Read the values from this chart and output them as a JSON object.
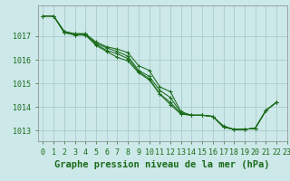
{
  "title": "Graphe pression niveau de la mer (hPa)",
  "background_color": "#cce8e8",
  "grid_color": "#aacccc",
  "line_color": "#1a6b1a",
  "xlim": [
    -0.5,
    23
  ],
  "ylim": [
    1012.55,
    1018.3
  ],
  "yticks": [
    1013,
    1014,
    1015,
    1016,
    1017
  ],
  "xticks": [
    0,
    1,
    2,
    3,
    4,
    5,
    6,
    7,
    8,
    9,
    10,
    11,
    12,
    13,
    14,
    15,
    16,
    17,
    18,
    19,
    20,
    21,
    22,
    23
  ],
  "series": [
    [
      1017.85,
      1017.85,
      1017.15,
      1017.05,
      1017.05,
      1016.6,
      1016.35,
      1016.1,
      1015.95,
      1015.45,
      1015.15,
      1014.55,
      1014.1,
      1013.7,
      1013.65,
      1013.65,
      1013.6,
      1013.15,
      1013.05,
      1013.05,
      1013.1,
      1013.85,
      1014.2,
      null
    ],
    [
      1017.85,
      1017.85,
      1017.15,
      1017.05,
      1017.05,
      1016.65,
      1016.4,
      1016.25,
      1016.05,
      1015.5,
      1015.2,
      1014.55,
      1014.2,
      1013.7,
      1013.65,
      1013.65,
      1013.6,
      1013.15,
      1013.05,
      1013.05,
      1013.1,
      1013.85,
      1014.2,
      null
    ],
    [
      1017.85,
      1017.85,
      1017.2,
      1017.1,
      1017.1,
      1016.7,
      1016.5,
      1016.35,
      1016.15,
      1015.55,
      1015.3,
      1014.7,
      1014.4,
      1013.75,
      1013.65,
      1013.65,
      1013.6,
      1013.15,
      1013.05,
      1013.05,
      1013.1,
      1013.85,
      1014.2,
      null
    ],
    [
      1017.85,
      1017.85,
      1017.2,
      1017.1,
      1017.1,
      1016.75,
      1016.55,
      1016.45,
      1016.3,
      1015.75,
      1015.55,
      1014.85,
      1014.65,
      1013.8,
      1013.65,
      1013.65,
      1013.6,
      1013.2,
      1013.05,
      1013.05,
      1013.1,
      1013.85,
      1014.2,
      null
    ]
  ],
  "title_fontsize": 7.5,
  "tick_fontsize": 6,
  "title_color": "#1a6b1a",
  "tick_color": "#1a6b1a",
  "axis_color": "#888888",
  "linewidth": 0.75,
  "markersize": 2.5
}
